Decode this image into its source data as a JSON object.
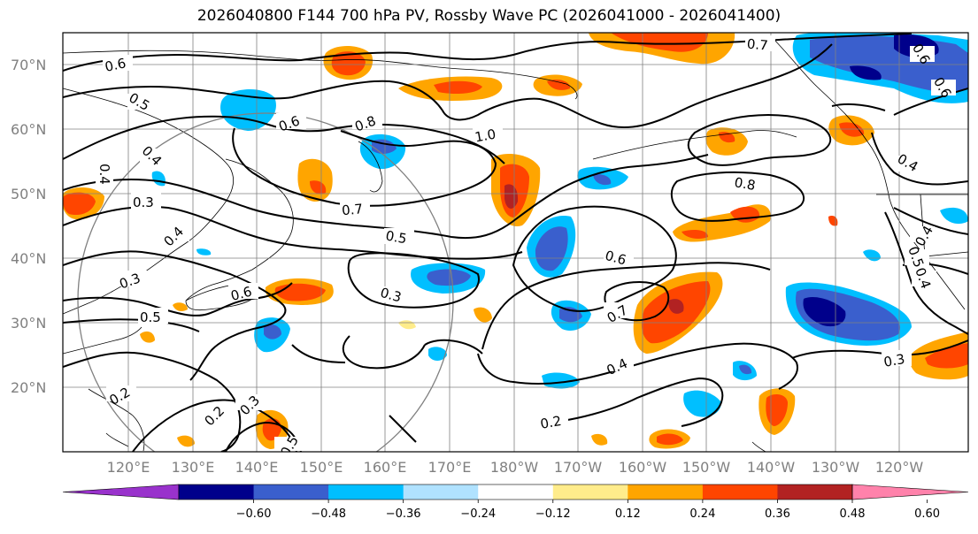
{
  "title": "2026040800 F144 700 hPa PV, Rossby Wave PC (2026041000 - 2026041400)",
  "lat_labels": [
    "70°N",
    "60°N",
    "50°N",
    "40°N",
    "30°N",
    "20°N"
  ],
  "lon_labels": [
    "120°E",
    "130°E",
    "140°E",
    "150°E",
    "160°E",
    "170°E",
    "180°W",
    "170°W",
    "160°W",
    "150°W",
    "140°W",
    "130°W",
    "120°W"
  ],
  "colorbar": {
    "ticks": [
      "−0.60",
      "−0.48",
      "−0.36",
      "−0.24",
      "−0.12",
      "0.12",
      "0.24",
      "0.36",
      "0.48",
      "0.60"
    ],
    "colors": [
      "#9932cc",
      "#00008b",
      "#3a5fcd",
      "#00bfff",
      "#b0e2ff",
      "#ffffff",
      "#ffec8b",
      "#ffa500",
      "#ff4500",
      "#b22222",
      "#ff82ab"
    ]
  },
  "contour_labels": [
    "0.6",
    "0.5",
    "0.4",
    "0.3",
    "0.2",
    "0.7",
    "0.8",
    "1.0",
    "0.8",
    "0.7",
    "0.6",
    "0.5",
    "0.4",
    "0.3",
    "0.2",
    "0.7",
    "0.6",
    "0.5",
    "0.4",
    "0.3",
    "0.2",
    "0.4",
    "0.3",
    "0.2",
    "0.7",
    "0.6",
    "0.8",
    "0.4",
    "0.5",
    "0.4",
    "0.6"
  ]
}
